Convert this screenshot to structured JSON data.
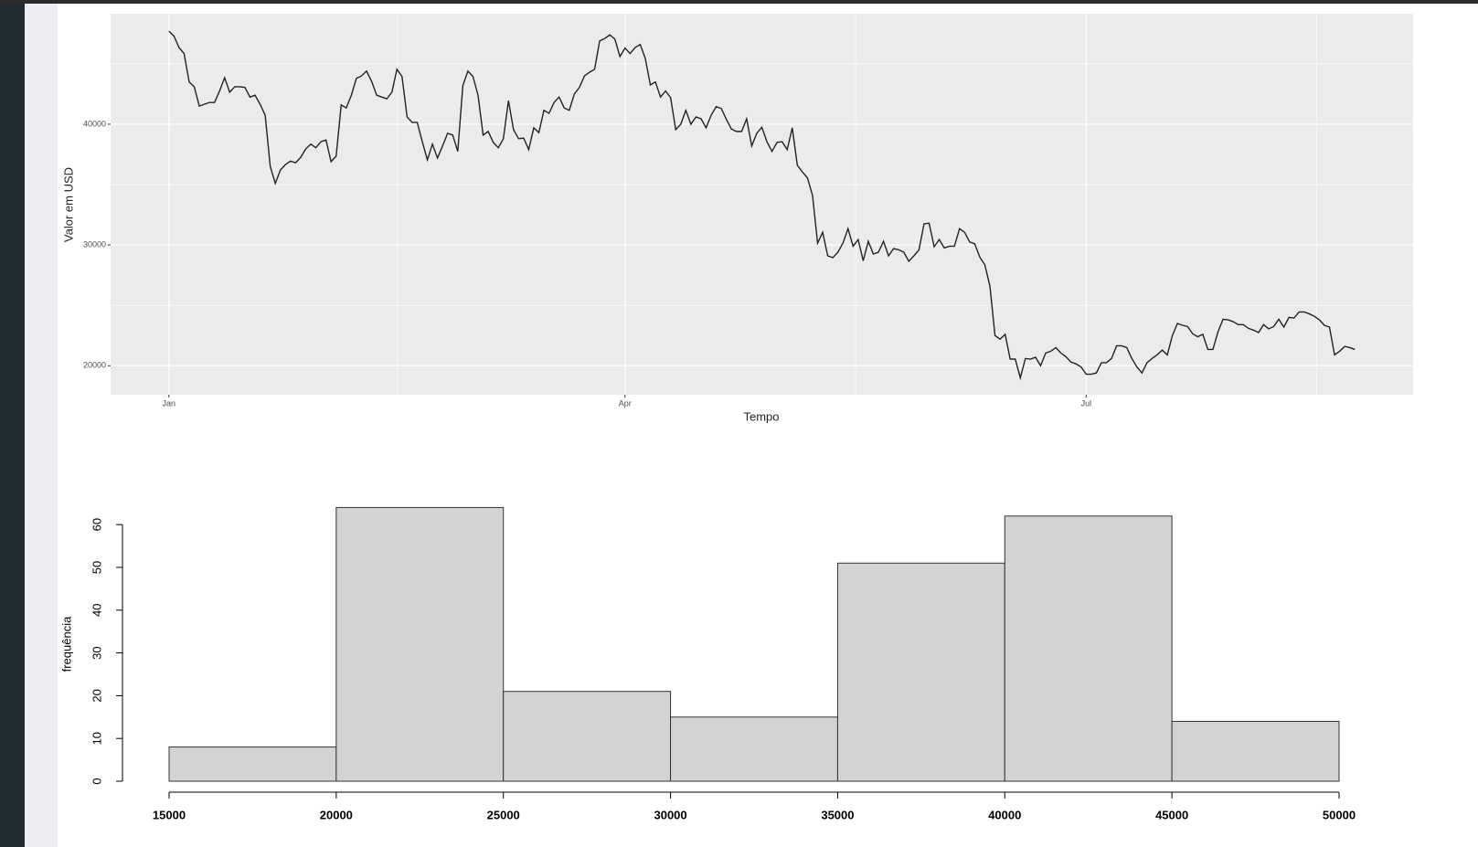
{
  "chart_data": [
    {
      "type": "line",
      "xlabel": "Tempo",
      "ylabel": "Valor em USD",
      "color": "#222222",
      "grid": true,
      "xlim": [
        -11.5,
        245.5
      ],
      "xticks": [
        {
          "value": 0,
          "label": "Jan"
        },
        {
          "value": 90,
          "label": "Apr"
        },
        {
          "value": 181,
          "label": "Jul"
        }
      ],
      "ylim": [
        17600,
        49150
      ],
      "yticks": [
        20000,
        30000,
        40000
      ],
      "x": [
        0,
        1,
        2,
        3,
        4,
        5,
        6,
        7,
        8,
        9,
        10,
        11,
        12,
        13,
        14,
        15,
        16,
        17,
        18,
        19,
        20,
        21,
        22,
        23,
        24,
        25,
        26,
        27,
        28,
        29,
        30,
        31,
        32,
        33,
        34,
        35,
        36,
        37,
        38,
        39,
        40,
        41,
        42,
        43,
        44,
        45,
        46,
        47,
        48,
        49,
        50,
        51,
        52,
        53,
        54,
        55,
        56,
        57,
        58,
        59,
        60,
        61,
        62,
        63,
        64,
        65,
        66,
        67,
        68,
        69,
        70,
        71,
        72,
        73,
        74,
        75,
        76,
        77,
        78,
        79,
        80,
        81,
        82,
        83,
        84,
        85,
        86,
        87,
        88,
        89,
        90,
        91,
        92,
        93,
        94,
        95,
        96,
        97,
        98,
        99,
        100,
        101,
        102,
        103,
        104,
        105,
        106,
        107,
        108,
        109,
        110,
        111,
        112,
        113,
        114,
        115,
        116,
        117,
        118,
        119,
        120,
        121,
        122,
        123,
        124,
        125,
        126,
        127,
        128,
        129,
        130,
        131,
        132,
        133,
        134,
        135,
        136,
        137,
        138,
        139,
        140,
        141,
        142,
        143,
        144,
        145,
        146,
        147,
        148,
        149,
        150,
        151,
        152,
        153,
        154,
        155,
        156,
        157,
        158,
        159,
        160,
        161,
        162,
        163,
        164,
        165,
        166,
        167,
        168,
        169,
        170,
        171,
        172,
        173,
        174,
        175,
        176,
        177,
        178,
        179,
        180,
        181,
        182,
        183,
        184,
        185,
        186,
        187,
        188,
        189,
        190,
        191,
        192,
        193,
        194,
        195,
        196,
        197,
        198,
        199,
        200,
        201,
        202,
        203,
        204,
        205,
        206,
        207,
        208,
        209,
        210,
        211,
        212,
        213,
        214,
        215,
        216,
        217,
        218,
        219,
        220,
        221,
        222,
        223,
        224,
        225,
        226,
        227,
        228,
        229,
        230,
        231,
        232,
        233,
        234
      ],
      "values": [
        47700,
        47300,
        46350,
        45850,
        43500,
        43100,
        41500,
        41650,
        41800,
        41800,
        42750,
        43850,
        42650,
        43100,
        43100,
        43050,
        42250,
        42400,
        41650,
        40750,
        36500,
        35100,
        36200,
        36650,
        36950,
        36800,
        37250,
        37950,
        38350,
        38050,
        38550,
        38700,
        36900,
        37350,
        41600,
        41350,
        42400,
        43800,
        44000,
        44400,
        43550,
        42400,
        42250,
        42100,
        42650,
        44550,
        43950,
        40600,
        40150,
        40150,
        38550,
        37050,
        38350,
        37200,
        38200,
        39250,
        39100,
        37750,
        43200,
        44400,
        43950,
        42400,
        39100,
        39400,
        38500,
        38050,
        38800,
        41950,
        39550,
        38800,
        38850,
        37900,
        39700,
        39300,
        41150,
        40900,
        41800,
        42250,
        41350,
        41150,
        42500,
        43050,
        44000,
        44300,
        44550,
        46900,
        47100,
        47400,
        47050,
        45600,
        46300,
        45850,
        46350,
        46600,
        45450,
        43250,
        43500,
        42250,
        42750,
        42200,
        39550,
        40000,
        41150,
        40000,
        40600,
        40450,
        39700,
        40750,
        41450,
        41300,
        40400,
        39600,
        39400,
        39400,
        40450,
        38200,
        39250,
        39750,
        38550,
        37750,
        38500,
        38550,
        37900,
        39700,
        36600,
        36050,
        35550,
        34100,
        30150,
        31050,
        29100,
        28950,
        29400,
        30150,
        31350,
        29900,
        30450,
        28700,
        30300,
        29250,
        29400,
        30300,
        29100,
        29700,
        29600,
        29400,
        28650,
        29100,
        29600,
        31750,
        31800,
        29850,
        30450,
        29750,
        29900,
        29900,
        31350,
        31050,
        30250,
        30100,
        29000,
        28350,
        26600,
        22500,
        22200,
        22600,
        20550,
        20550,
        19000,
        20600,
        20550,
        20700,
        20000,
        21050,
        21200,
        21500,
        21050,
        20750,
        20300,
        20150,
        19900,
        19300,
        19300,
        19400,
        20250,
        20250,
        20600,
        21650,
        21650,
        21500,
        20600,
        19900,
        19400,
        20250,
        20600,
        20900,
        21300,
        20900,
        22500,
        23500,
        23350,
        23250,
        22650,
        22400,
        22600,
        21350,
        21350,
        22800,
        23850,
        23800,
        23650,
        23400,
        23400,
        23100,
        22950,
        22750,
        23400,
        23050,
        23250,
        23850,
        23200,
        24000,
        23950,
        24450,
        24450,
        24300,
        24100,
        23800,
        23350,
        23200,
        20900,
        21200,
        21600,
        21500,
        21350
      ]
    },
    {
      "type": "histogram",
      "ylabel": "frequência",
      "color": "#d3d3d3",
      "bins": [
        15000,
        20000,
        25000,
        30000,
        35000,
        40000,
        45000,
        50000
      ],
      "values": [
        8,
        64,
        21,
        15,
        51,
        62,
        14
      ],
      "xlim": [
        15000,
        50000
      ],
      "xticks": [
        15000,
        20000,
        25000,
        30000,
        35000,
        40000,
        45000,
        50000
      ],
      "ylim": [
        0,
        67.3
      ],
      "yticks": [
        0,
        10,
        20,
        30,
        40,
        50,
        60
      ]
    }
  ]
}
